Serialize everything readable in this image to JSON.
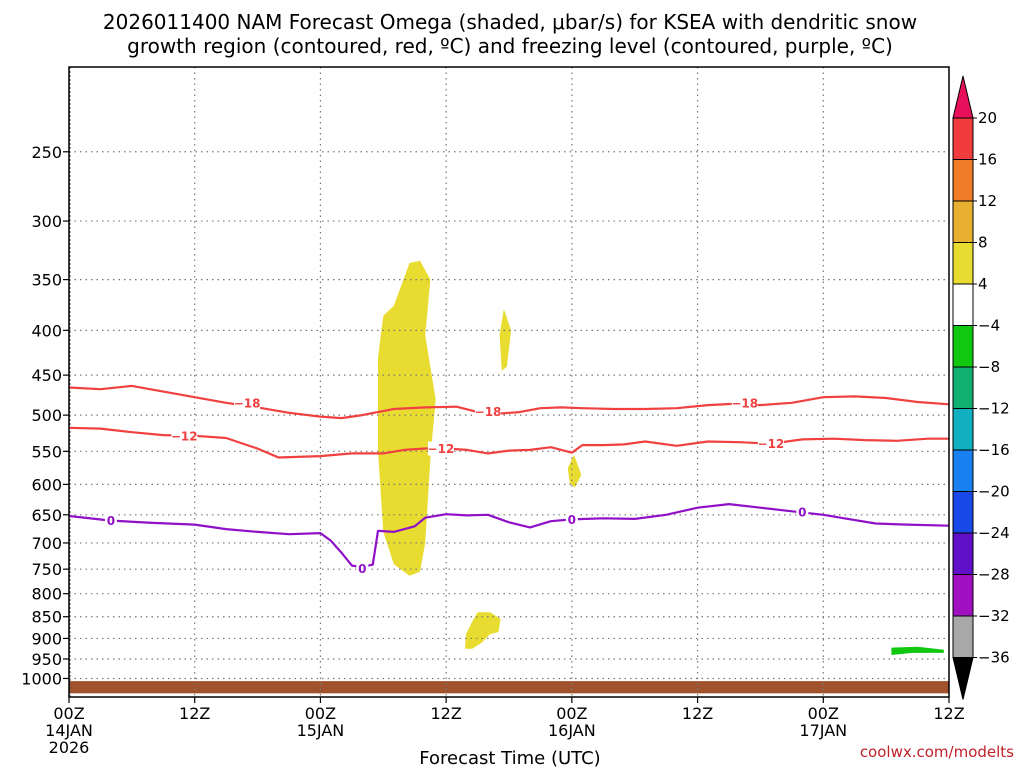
{
  "chart_data": {
    "type": "time-height cross section",
    "title_line1": "2026011400 NAM Forecast Omega (shaded, μbar/s) for KSEA with dendritic snow",
    "title_line2": "growth region (contoured, red, ºC) and freezing level (contoured, purple, ºC)",
    "xlabel": "Forecast Time (UTC)",
    "credit": "coolwx.com/modelts",
    "x_hours_range": [
      0,
      84
    ],
    "y_pressure_range_hpa": [
      1050,
      200
    ],
    "x_ticks": [
      {
        "hour": 0,
        "line1": "00Z",
        "line2": "14JAN",
        "line3": "2026"
      },
      {
        "hour": 12,
        "line1": "12Z",
        "line2": "",
        "line3": ""
      },
      {
        "hour": 24,
        "line1": "00Z",
        "line2": "15JAN",
        "line3": ""
      },
      {
        "hour": 36,
        "line1": "12Z",
        "line2": "",
        "line3": ""
      },
      {
        "hour": 48,
        "line1": "00Z",
        "line2": "16JAN",
        "line3": ""
      },
      {
        "hour": 60,
        "line1": "12Z",
        "line2": "",
        "line3": ""
      },
      {
        "hour": 72,
        "line1": "00Z",
        "line2": "17JAN",
        "line3": ""
      },
      {
        "hour": 84,
        "line1": "12Z",
        "line2": "",
        "line3": ""
      }
    ],
    "y_ticks": [
      250,
      300,
      350,
      400,
      450,
      500,
      550,
      600,
      650,
      700,
      750,
      800,
      850,
      900,
      950,
      1000
    ],
    "colorbar": {
      "levels": [
        "20",
        "16",
        "12",
        "8",
        "4",
        "−4",
        "−8",
        "−12",
        "−16",
        "−20",
        "−24",
        "−28",
        "−32",
        "−36"
      ],
      "colors": [
        "#e8105a",
        "#f03c3c",
        "#f07c28",
        "#e8b030",
        "#e8dc30",
        "#ffffff",
        "#10c810",
        "#10b070",
        "#10b0c0",
        "#1880f0",
        "#1848e8",
        "#6010c8",
        "#a010c0",
        "#a8a8a8",
        "#000000"
      ]
    },
    "contours": [
      {
        "name": "-18C isotherm",
        "label": "−18",
        "color": "#f04040",
        "points": [
          [
            0,
            465
          ],
          [
            3,
            467
          ],
          [
            6,
            463
          ],
          [
            9,
            470
          ],
          [
            12,
            477
          ],
          [
            15,
            484
          ],
          [
            18,
            490
          ],
          [
            21,
            497
          ],
          [
            24,
            502
          ],
          [
            26,
            504
          ],
          [
            28,
            500
          ],
          [
            31,
            492
          ],
          [
            34,
            490
          ],
          [
            37,
            489
          ],
          [
            39,
            496
          ],
          [
            41,
            498
          ],
          [
            43,
            496
          ],
          [
            45,
            491
          ],
          [
            47,
            490
          ],
          [
            49,
            491
          ],
          [
            52,
            492
          ],
          [
            55,
            492
          ],
          [
            58,
            491
          ],
          [
            61,
            487
          ],
          [
            64,
            485
          ],
          [
            66,
            487
          ],
          [
            69,
            484
          ],
          [
            72,
            477
          ],
          [
            75,
            476
          ],
          [
            78,
            478
          ],
          [
            81,
            483
          ],
          [
            84,
            486
          ]
        ]
      },
      {
        "name": "-12C isotherm",
        "label": "−12",
        "color": "#f04040",
        "points": [
          [
            0,
            517
          ],
          [
            3,
            518
          ],
          [
            6,
            523
          ],
          [
            9,
            527
          ],
          [
            12,
            528
          ],
          [
            15,
            531
          ],
          [
            18,
            546
          ],
          [
            20,
            559
          ],
          [
            24,
            557
          ],
          [
            27,
            553
          ],
          [
            30,
            553
          ],
          [
            32,
            548
          ],
          [
            35,
            545
          ],
          [
            38,
            548
          ],
          [
            40,
            553
          ],
          [
            42,
            549
          ],
          [
            44,
            548
          ],
          [
            46,
            544
          ],
          [
            48,
            552
          ],
          [
            49,
            541
          ],
          [
            51,
            541
          ],
          [
            53,
            540
          ],
          [
            55,
            536
          ],
          [
            58,
            542
          ],
          [
            61,
            536
          ],
          [
            64,
            537
          ],
          [
            67,
            539
          ],
          [
            70,
            533
          ],
          [
            73,
            532
          ],
          [
            76,
            534
          ],
          [
            79,
            535
          ],
          [
            82,
            532
          ],
          [
            84,
            532
          ]
        ]
      },
      {
        "name": "0C freezing level",
        "label": "0",
        "color": "#9010c8",
        "points": [
          [
            0,
            652
          ],
          [
            4,
            660
          ],
          [
            8,
            664
          ],
          [
            12,
            667
          ],
          [
            15,
            675
          ],
          [
            18,
            680
          ],
          [
            21,
            684
          ],
          [
            24,
            682
          ],
          [
            25,
            696
          ],
          [
            26,
            718
          ],
          [
            27,
            743
          ],
          [
            28,
            746
          ],
          [
            29,
            741
          ],
          [
            29.5,
            678
          ],
          [
            31,
            680
          ],
          [
            33,
            670
          ],
          [
            34,
            655
          ],
          [
            36,
            649
          ],
          [
            38,
            651
          ],
          [
            40,
            650
          ],
          [
            42,
            663
          ],
          [
            44,
            672
          ],
          [
            46,
            661
          ],
          [
            48,
            658
          ],
          [
            51,
            656
          ],
          [
            54,
            657
          ],
          [
            57,
            650
          ],
          [
            60,
            638
          ],
          [
            63,
            632
          ],
          [
            66,
            638
          ],
          [
            69,
            644
          ],
          [
            72,
            650
          ],
          [
            74,
            656
          ],
          [
            77,
            665
          ],
          [
            80,
            667
          ],
          [
            84,
            669
          ]
        ]
      }
    ],
    "contour_labels": [
      {
        "text": "−18",
        "hour": 17,
        "p": 484,
        "color": "#f04040"
      },
      {
        "text": "−18",
        "hour": 40,
        "p": 495,
        "color": "#f04040"
      },
      {
        "text": "−18",
        "hour": 64.5,
        "p": 484,
        "color": "#f04040"
      },
      {
        "text": "−12",
        "hour": 11,
        "p": 528,
        "color": "#f04040"
      },
      {
        "text": "−12",
        "hour": 35.5,
        "p": 546,
        "color": "#f04040"
      },
      {
        "text": "−12",
        "hour": 67,
        "p": 539,
        "color": "#f04040"
      },
      {
        "text": "0",
        "hour": 4,
        "p": 660,
        "color": "#9010c8"
      },
      {
        "text": "0",
        "hour": 28,
        "p": 749,
        "color": "#9010c8"
      },
      {
        "text": "0",
        "hour": 48,
        "p": 658,
        "color": "#9010c8"
      },
      {
        "text": "0",
        "hour": 70,
        "p": 645,
        "color": "#9010c8"
      }
    ],
    "shaded_regions": [
      {
        "name": "omega 4-8 main column",
        "color": "#e8dc30",
        "points": [
          [
            31,
            375
          ],
          [
            32.5,
            335
          ],
          [
            33.5,
            333
          ],
          [
            34.5,
            350
          ],
          [
            34,
            405
          ],
          [
            35,
            480
          ],
          [
            34.5,
            560
          ],
          [
            34,
            700
          ],
          [
            33.5,
            755
          ],
          [
            32.5,
            763
          ],
          [
            31,
            740
          ],
          [
            30,
            680
          ],
          [
            29.5,
            550
          ],
          [
            29.5,
            430
          ],
          [
            30,
            385
          ]
        ]
      },
      {
        "name": "omega 4-8 small cell upper",
        "color": "#e8dc30",
        "points": [
          [
            41.5,
            378
          ],
          [
            42.2,
            400
          ],
          [
            41.8,
            440
          ],
          [
            41.3,
            445
          ],
          [
            41.1,
            405
          ]
        ]
      },
      {
        "name": "omega 4-8 small cell mid",
        "color": "#e8dc30",
        "points": [
          [
            47.6,
            575
          ],
          [
            48.2,
            555
          ],
          [
            48.9,
            585
          ],
          [
            48.3,
            605
          ],
          [
            47.8,
            598
          ]
        ]
      },
      {
        "name": "omega 4-8 low cell",
        "color": "#e8dc30",
        "points": [
          [
            39,
            840
          ],
          [
            40.2,
            840
          ],
          [
            41.2,
            855
          ],
          [
            41,
            885
          ],
          [
            40.2,
            890
          ],
          [
            39.4,
            910
          ],
          [
            38.5,
            925
          ],
          [
            37.8,
            925
          ],
          [
            37.9,
            890
          ],
          [
            38.4,
            865
          ]
        ]
      },
      {
        "name": "omega -4 to -8 low cell",
        "color": "#10c810",
        "points": [
          [
            78.5,
            922
          ],
          [
            81,
            920
          ],
          [
            83.5,
            927
          ],
          [
            83.5,
            935
          ],
          [
            80.5,
            935
          ],
          [
            78.5,
            940
          ]
        ]
      }
    ],
    "ground_fill": {
      "color": "#a0522d",
      "top_p": 1007,
      "bottom_p": 1040
    }
  }
}
